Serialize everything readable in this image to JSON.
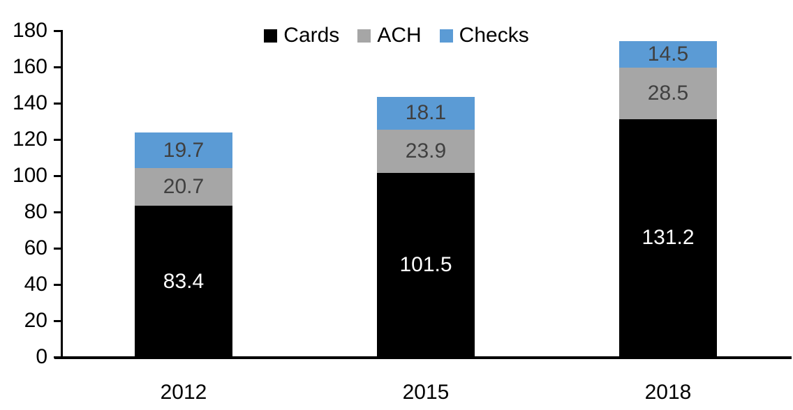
{
  "chart_data": {
    "type": "bar",
    "stacked": true,
    "title": "",
    "xlabel": "",
    "ylabel": "",
    "categories": [
      "2012",
      "2015",
      "2018"
    ],
    "series": [
      {
        "name": "Cards",
        "color": "#000000",
        "label_color": "#FFFFFF",
        "values": [
          83.4,
          101.5,
          131.2
        ]
      },
      {
        "name": "ACH",
        "color": "#A6A6A6",
        "label_color": "#404040",
        "values": [
          20.7,
          23.9,
          28.5
        ]
      },
      {
        "name": "Checks",
        "color": "#5B9BD5",
        "label_color": "#404040",
        "values": [
          19.7,
          18.1,
          14.5
        ]
      }
    ],
    "ylim": [
      0,
      180
    ],
    "yticks": [
      0,
      20,
      40,
      60,
      80,
      100,
      120,
      140,
      160,
      180
    ],
    "grid": false,
    "legend_position": "top",
    "axis_color": "#000000",
    "background": "#FFFFFF"
  }
}
